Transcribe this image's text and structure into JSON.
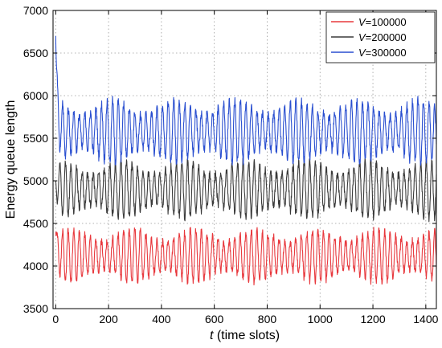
{
  "chart_data": {
    "type": "line",
    "xlabel_italic": "t",
    "xlabel_rest": " (time slots)",
    "ylabel": "Energy queue length",
    "xlim": [
      -10,
      1440
    ],
    "ylim": [
      3500,
      7000
    ],
    "xticks": [
      0,
      200,
      400,
      600,
      800,
      1000,
      1200,
      1400
    ],
    "yticks": [
      3500,
      4000,
      4500,
      5000,
      5500,
      6000,
      6500,
      7000
    ],
    "grid": true,
    "legend_position": "top-right",
    "series": [
      {
        "name_var": "V",
        "name_value": "=100000",
        "color": "#e8383d",
        "initial_point": [
          0,
          4400
        ],
        "steady_center": 4120,
        "steady_amplitude": 280,
        "period": 21,
        "x_start": 0,
        "x_end": 1440
      },
      {
        "name_var": "V",
        "name_value": "=200000",
        "color": "#3a3a3a",
        "initial_point": [
          0,
          5000
        ],
        "steady_center": 4900,
        "steady_amplitude": 300,
        "period": 21,
        "x_start": 0,
        "x_end": 1440
      },
      {
        "name_var": "V",
        "name_value": "=300000",
        "color": "#2a4fd0",
        "initial_point": [
          0,
          6700
        ],
        "steady_center": 5580,
        "steady_amplitude": 330,
        "period": 21,
        "x_start": 0,
        "x_end": 1440
      }
    ]
  }
}
